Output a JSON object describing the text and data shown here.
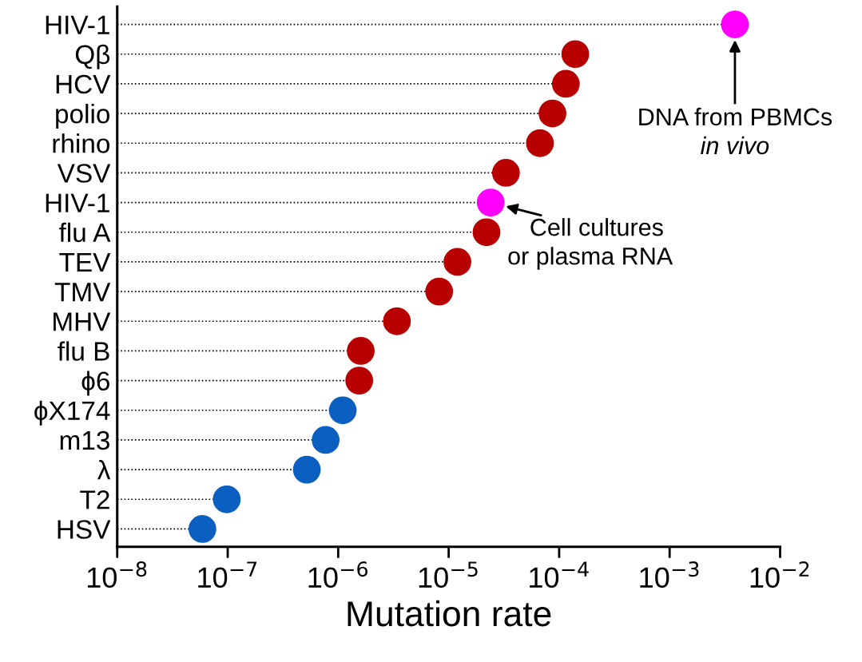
{
  "chart_data": {
    "type": "lollipop",
    "orientation": "horizontal",
    "log": "x",
    "xlabel": "Mutation rate",
    "categories": [
      "HIV-1",
      "Qβ",
      "HCV",
      "polio",
      "rhino",
      "VSV",
      "HIV-1",
      "flu A",
      "TEV",
      "TMV",
      "MHV",
      "flu B",
      "ϕ6",
      "ϕX174",
      "m13",
      "λ",
      "T2",
      "HSV"
    ],
    "values": [
      0.0039,
      0.00014,
      0.000115,
      8.7e-05,
      6.7e-05,
      3.3e-05,
      2.4e-05,
      2.2e-05,
      1.2e-05,
      8.2e-06,
      3.4e-06,
      1.6e-06,
      1.55e-06,
      1.1e-06,
      7.7e-07,
      5.2e-07,
      9.8e-08,
      5.9e-08
    ],
    "colors": [
      "#ff00ff",
      "#b80000",
      "#b80000",
      "#b80000",
      "#b80000",
      "#b80000",
      "#ff00ff",
      "#b80000",
      "#b80000",
      "#b80000",
      "#b80000",
      "#b80000",
      "#b80000",
      "#0a5fc0",
      "#0a5fc0",
      "#0a5fc0",
      "#0a5fc0",
      "#0a5fc0"
    ],
    "xlim": [
      1e-08,
      0.01
    ],
    "xticks": [
      {
        "value": 1e-08,
        "label": "10$^{−8}$"
      },
      {
        "value": 1e-07,
        "label": "10$^{−7}$"
      },
      {
        "value": 1e-06,
        "label": "10$^{−6}$"
      },
      {
        "value": 1e-05,
        "label": "10$^{−5}$"
      },
      {
        "value": 0.0001,
        "label": "10$^{−4}$"
      },
      {
        "value": 0.001,
        "label": "10$^{−3}$"
      },
      {
        "value": 0.01,
        "label": "10$^{−2}$"
      }
    ],
    "marker": "circle",
    "line_style": "dotted",
    "legend": false,
    "annotations": [
      {
        "text": "DNA from PBMCs\nin vivo",
        "x": 0.0039
      },
      {
        "text": "Cell cultures\nor plasma RNA",
        "x": 2.4e-05
      }
    ]
  }
}
